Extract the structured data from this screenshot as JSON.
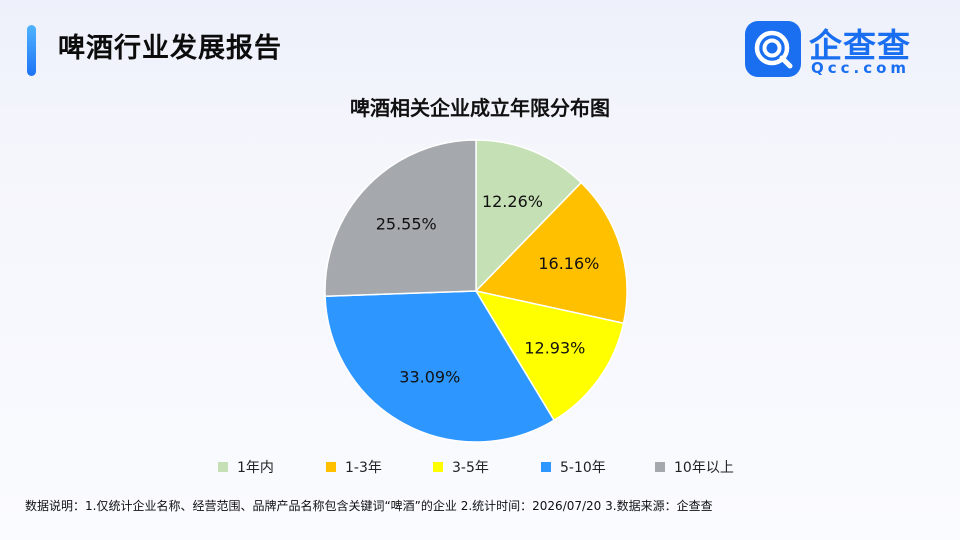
{
  "header": {
    "title": "啤酒行业发展报告",
    "logo_text": "企查查",
    "logo_sub": "Qcc.com",
    "logo_icon": "qcc-magnifier-icon",
    "accent_color": "#1a6ff0"
  },
  "chart_data": {
    "type": "pie",
    "title": "啤酒相关企业成立年限分布图",
    "categories": [
      "1年内",
      "1-3年",
      "3-5年",
      "5-10年",
      "10年以上"
    ],
    "values": [
      12.26,
      16.16,
      12.93,
      33.09,
      25.55
    ],
    "labels": [
      "12.26%",
      "16.16%",
      "12.93%",
      "33.09%",
      "25.55%"
    ],
    "colors": [
      "#c5e0b4",
      "#ffc000",
      "#ffff00",
      "#2e96ff",
      "#a5a8ad"
    ],
    "legend_position": "bottom"
  },
  "footer": {
    "note": "数据说明：1.仅统计企业名称、经营范围、品牌产品名称包含关键词“啤酒”的企业    2.统计时间：2026/07/20    3.数据来源：企查查"
  }
}
